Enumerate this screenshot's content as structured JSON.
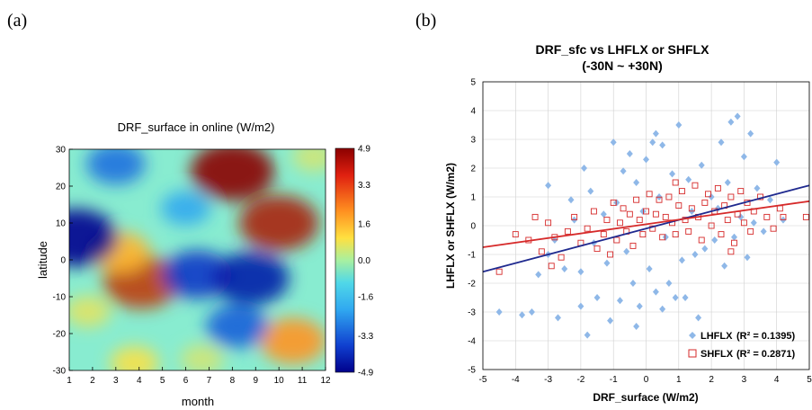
{
  "panels": {
    "a_label": "(a)",
    "b_label": "(b)"
  },
  "chart_data": [
    {
      "type": "heatmap",
      "title": "DRF_surface in online (W/m2)",
      "xlabel": "month",
      "ylabel": "latitude",
      "x_ticks": [
        "1",
        "2",
        "3",
        "4",
        "5",
        "6",
        "7",
        "8",
        "9",
        "10",
        "11",
        "12"
      ],
      "y_ticks": [
        "30",
        "20",
        "10",
        "0",
        "-10",
        "-20",
        "-30"
      ],
      "xlim": [
        1,
        12
      ],
      "ylim": [
        -30,
        30
      ],
      "colorbar": {
        "ticks": [
          "4.9",
          "3.3",
          "1.6",
          "0.0",
          "-1.6",
          "-3.3",
          "-4.9"
        ],
        "range": [
          -4.9,
          4.9
        ]
      },
      "hotspots": [
        {
          "month": 8.0,
          "lat": 24,
          "value": 4.9
        },
        {
          "month": 10.0,
          "lat": 10,
          "value": 4.5
        },
        {
          "month": 4.1,
          "lat": -6,
          "value": 4.2
        },
        {
          "month": 10.6,
          "lat": -22,
          "value": 3.2
        },
        {
          "month": 3.2,
          "lat": 2,
          "value": 2.5
        },
        {
          "month": 11.5,
          "lat": 28,
          "value": 1.0
        },
        {
          "month": 3.0,
          "lat": 26,
          "value": -2.5
        },
        {
          "month": 1.3,
          "lat": 6,
          "value": -4.8
        },
        {
          "month": 6.5,
          "lat": -4,
          "value": -3.5
        },
        {
          "month": 8.8,
          "lat": -5,
          "value": -4.2
        },
        {
          "month": 6.0,
          "lat": 14,
          "value": -1.6
        },
        {
          "month": 1.8,
          "lat": -14,
          "value": 1.2
        },
        {
          "month": 8.2,
          "lat": -18,
          "value": -2.8
        },
        {
          "month": 6.7,
          "lat": -27,
          "value": 1.0
        },
        {
          "month": 3.8,
          "lat": -28,
          "value": 1.5
        }
      ]
    },
    {
      "type": "scatter",
      "title": "DRF_sfc vs LHFLX or SHFLX",
      "subtitle": "(-30N ~ +30N)",
      "xlabel": "DRF_surface (W/m2)",
      "ylabel": "LHFLX or SHFLX (W/m2)",
      "xlim": [
        -5,
        5
      ],
      "ylim": [
        -5,
        5
      ],
      "x_ticks": [
        "-5",
        "-4",
        "-3",
        "-2",
        "-1",
        "0",
        "1",
        "2",
        "3",
        "4",
        "5"
      ],
      "y_ticks": [
        "5",
        "4",
        "3",
        "2",
        "1",
        "0",
        "-1",
        "-2",
        "-3",
        "-4",
        "-5"
      ],
      "grid": true,
      "legend_position": "bottom-right",
      "series": [
        {
          "name": "LHFLX",
          "r2_label": "(R² = 0.1395)",
          "color": "#8fb8e8",
          "marker": "diamond",
          "fit": {
            "slope": 0.3,
            "intercept": -0.1,
            "color": "#1f2a8f"
          },
          "points": [
            [
              -4.5,
              -3.0
            ],
            [
              -3.8,
              -3.1
            ],
            [
              -3.5,
              -3.0
            ],
            [
              -3.0,
              -1.0
            ],
            [
              -3.0,
              1.4
            ],
            [
              -2.7,
              -3.2
            ],
            [
              -2.5,
              -1.5
            ],
            [
              -2.3,
              0.9
            ],
            [
              -2.0,
              -2.8
            ],
            [
              -2.0,
              -1.6
            ],
            [
              -1.9,
              2.0
            ],
            [
              -1.8,
              -3.8
            ],
            [
              -1.7,
              1.2
            ],
            [
              -1.5,
              -2.5
            ],
            [
              -1.3,
              0.4
            ],
            [
              -1.2,
              -1.3
            ],
            [
              -1.1,
              -3.3
            ],
            [
              -1.0,
              2.9
            ],
            [
              -0.8,
              -2.6
            ],
            [
              -0.7,
              1.9
            ],
            [
              -0.6,
              -0.9
            ],
            [
              -0.5,
              2.5
            ],
            [
              -0.4,
              -2.0
            ],
            [
              -0.3,
              1.5
            ],
            [
              -0.2,
              -2.8
            ],
            [
              0.0,
              2.3
            ],
            [
              0.1,
              -1.5
            ],
            [
              0.2,
              2.9
            ],
            [
              0.3,
              -2.3
            ],
            [
              0.4,
              1.0
            ],
            [
              0.5,
              -2.9
            ],
            [
              0.5,
              2.8
            ],
            [
              0.7,
              -2.0
            ],
            [
              0.8,
              1.8
            ],
            [
              0.9,
              -2.5
            ],
            [
              1.0,
              3.5
            ],
            [
              1.1,
              -1.2
            ],
            [
              1.2,
              -2.5
            ],
            [
              1.3,
              1.6
            ],
            [
              1.5,
              -1.0
            ],
            [
              1.7,
              2.1
            ],
            [
              1.8,
              -0.8
            ],
            [
              2.0,
              1.0
            ],
            [
              2.1,
              -0.5
            ],
            [
              2.3,
              2.9
            ],
            [
              2.4,
              -1.4
            ],
            [
              2.5,
              1.5
            ],
            [
              2.6,
              3.6
            ],
            [
              2.7,
              -0.4
            ],
            [
              2.8,
              3.8
            ],
            [
              2.9,
              0.3
            ],
            [
              3.0,
              2.4
            ],
            [
              3.1,
              -1.1
            ],
            [
              3.2,
              3.2
            ],
            [
              3.4,
              1.3
            ],
            [
              3.6,
              -0.2
            ],
            [
              3.8,
              0.9
            ],
            [
              4.0,
              2.2
            ],
            [
              4.2,
              0.2
            ],
            [
              -2.8,
              -0.5
            ],
            [
              -2.2,
              0.2
            ],
            [
              -1.6,
              -0.6
            ],
            [
              -0.9,
              0.8
            ],
            [
              -0.1,
              0.5
            ],
            [
              0.6,
              -0.4
            ],
            [
              1.4,
              0.5
            ],
            [
              2.2,
              0.6
            ],
            [
              3.3,
              0.1
            ],
            [
              -3.3,
              -1.7
            ],
            [
              -0.3,
              -3.5
            ],
            [
              1.6,
              -3.2
            ],
            [
              0.3,
              3.2
            ]
          ]
        },
        {
          "name": "SHFLX",
          "r2_label": "(R² = 0.2871)",
          "color": "#d62a2a",
          "marker": "square",
          "fit": {
            "slope": 0.16,
            "intercept": 0.05,
            "color": "#d62a2a"
          },
          "points": [
            [
              -4.5,
              -1.6
            ],
            [
              -4.0,
              -0.3
            ],
            [
              -3.6,
              -0.5
            ],
            [
              -3.2,
              -0.9
            ],
            [
              -3.0,
              0.1
            ],
            [
              -2.8,
              -0.4
            ],
            [
              -2.6,
              -1.1
            ],
            [
              -2.4,
              -0.2
            ],
            [
              -2.2,
              0.3
            ],
            [
              -2.0,
              -0.6
            ],
            [
              -1.8,
              -0.1
            ],
            [
              -1.6,
              0.5
            ],
            [
              -1.5,
              -0.8
            ],
            [
              -1.3,
              -0.3
            ],
            [
              -1.2,
              0.2
            ],
            [
              -1.0,
              0.8
            ],
            [
              -0.9,
              -0.5
            ],
            [
              -0.8,
              0.1
            ],
            [
              -0.7,
              0.6
            ],
            [
              -0.6,
              -0.2
            ],
            [
              -0.5,
              0.4
            ],
            [
              -0.4,
              -0.7
            ],
            [
              -0.3,
              0.9
            ],
            [
              -0.2,
              0.2
            ],
            [
              -0.1,
              -0.3
            ],
            [
              0.0,
              0.5
            ],
            [
              0.1,
              1.1
            ],
            [
              0.2,
              -0.1
            ],
            [
              0.3,
              0.4
            ],
            [
              0.4,
              0.9
            ],
            [
              0.5,
              -0.4
            ],
            [
              0.6,
              0.3
            ],
            [
              0.7,
              1.0
            ],
            [
              0.8,
              0.1
            ],
            [
              0.9,
              -0.3
            ],
            [
              1.0,
              0.7
            ],
            [
              1.1,
              1.2
            ],
            [
              1.2,
              0.2
            ],
            [
              1.3,
              -0.2
            ],
            [
              1.4,
              0.6
            ],
            [
              1.5,
              1.4
            ],
            [
              1.6,
              0.3
            ],
            [
              1.7,
              -0.5
            ],
            [
              1.8,
              0.8
            ],
            [
              1.9,
              1.1
            ],
            [
              2.0,
              0.0
            ],
            [
              2.1,
              0.5
            ],
            [
              2.2,
              1.3
            ],
            [
              2.3,
              -0.3
            ],
            [
              2.4,
              0.7
            ],
            [
              2.5,
              0.2
            ],
            [
              2.6,
              1.0
            ],
            [
              2.7,
              -0.6
            ],
            [
              2.8,
              0.4
            ],
            [
              2.9,
              1.2
            ],
            [
              3.0,
              0.1
            ],
            [
              3.1,
              0.8
            ],
            [
              3.2,
              -0.2
            ],
            [
              3.3,
              0.5
            ],
            [
              3.5,
              1.0
            ],
            [
              3.7,
              0.3
            ],
            [
              3.9,
              -0.1
            ],
            [
              4.1,
              0.6
            ],
            [
              4.2,
              0.3
            ],
            [
              4.9,
              0.3
            ],
            [
              -3.4,
              0.3
            ],
            [
              -2.9,
              -1.4
            ],
            [
              -1.1,
              -1.0
            ],
            [
              0.9,
              1.5
            ],
            [
              2.6,
              -0.9
            ]
          ]
        }
      ]
    }
  ]
}
